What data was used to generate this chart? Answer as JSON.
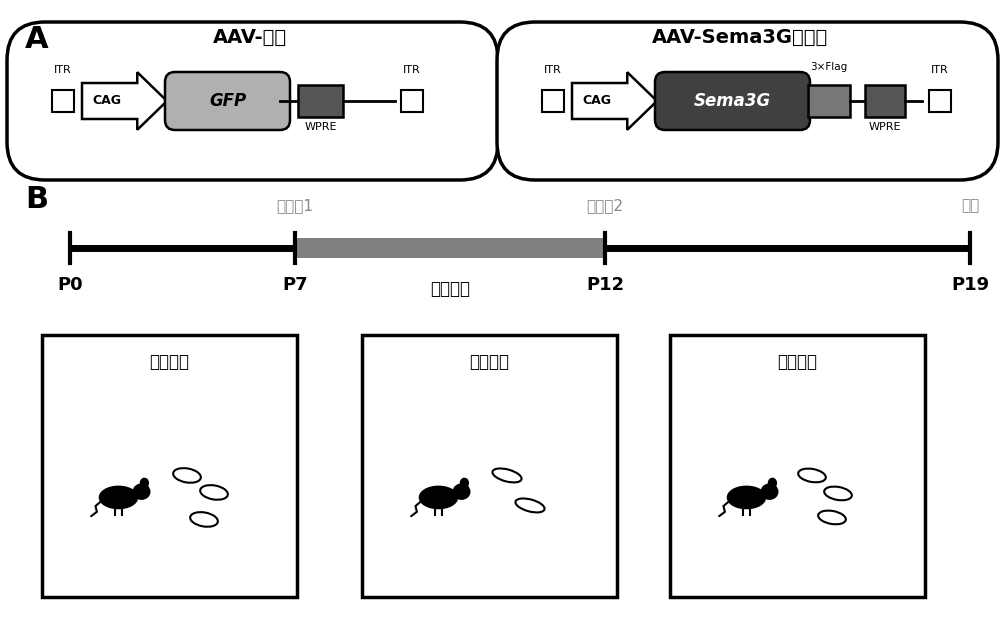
{
  "panel_A_label": "A",
  "panel_B_label": "B",
  "aav_control_title": "AAV-对照",
  "aav_sema3g_title": "AAV-Sema3G过表达",
  "itr_label": "ITR",
  "cag_label": "CAG",
  "gfp_label": "GFP",
  "wpre_label": "WPRE",
  "sema3g_label": "Sema3G",
  "flag_label": "3×Flag",
  "inject1_label": "注射点1",
  "inject2_label": "注射点2",
  "analysis_label": "分析",
  "high_o2_label": "高氧环境",
  "p0_label": "P0",
  "p7_label": "P7",
  "p12_label": "P12",
  "p19_label": "P19",
  "box1_label": "常氧环境",
  "box2_label": "高氧环境",
  "box3_label": "常氧环境",
  "bg_color": "#ffffff",
  "text_color": "#000000",
  "gray_color": "#808080",
  "dark_gray": "#404040",
  "light_gray": "#aaaaaa"
}
